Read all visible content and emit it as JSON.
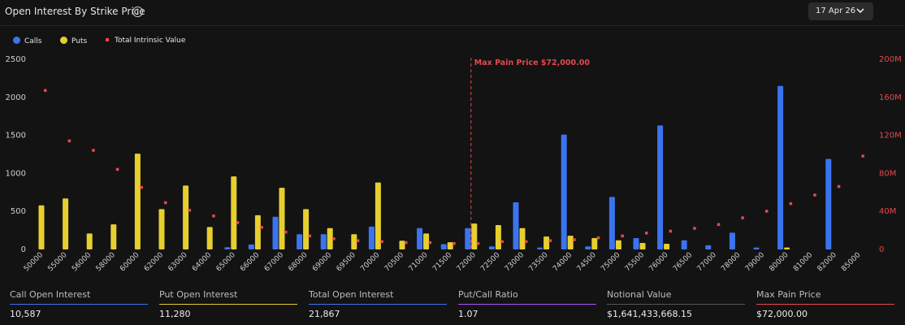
{
  "header": {
    "title": "Open Interest By Strike Price",
    "info_icon": "info-icon",
    "date": "17 Apr 26",
    "date_chevron": "chevron-down-icon"
  },
  "legend": {
    "calls": "Calls",
    "puts": "Puts",
    "intrinsic": "Total Intrinsic Value"
  },
  "colors": {
    "calls": "#3b74f0",
    "puts": "#e6cf2e",
    "intrinsic": "#e5484d",
    "max_pain": "#e5484d",
    "ratio_line": "#a855f7",
    "notional_line": "#555555"
  },
  "chart_data": {
    "type": "bar",
    "title": "Open Interest By Strike Price",
    "categories": [
      "50000",
      "55000",
      "56000",
      "58000",
      "60000",
      "62000",
      "63000",
      "64000",
      "65000",
      "66000",
      "67000",
      "68000",
      "69000",
      "69500",
      "70000",
      "70500",
      "71000",
      "71500",
      "72000",
      "72500",
      "73000",
      "73500",
      "74000",
      "74500",
      "75000",
      "75500",
      "76000",
      "76500",
      "77000",
      "78000",
      "79000",
      "80000",
      "81000",
      "82000",
      "85000"
    ],
    "series": [
      {
        "name": "Calls",
        "axis": "left",
        "values": [
          0,
          0,
          0,
          0,
          0,
          0,
          0,
          0,
          30,
          65,
          430,
          200,
          200,
          0,
          300,
          0,
          280,
          70,
          280,
          40,
          620,
          25,
          1510,
          40,
          690,
          150,
          1630,
          120,
          55,
          220,
          25,
          2150,
          0,
          1190,
          0
        ]
      },
      {
        "name": "Puts",
        "axis": "left",
        "values": [
          580,
          670,
          210,
          330,
          1260,
          530,
          840,
          295,
          960,
          450,
          810,
          530,
          280,
          200,
          880,
          115,
          210,
          95,
          340,
          320,
          280,
          170,
          180,
          150,
          120,
          85,
          75,
          0,
          0,
          0,
          0,
          25,
          0,
          0,
          0
        ]
      },
      {
        "name": "Total Intrinsic Value",
        "axis": "right",
        "type": "scatter",
        "values": [
          167000000,
          114000000,
          104000000,
          84000000,
          65000000,
          49000000,
          41000000,
          35000000,
          28000000,
          23000000,
          18000000,
          14000000,
          11000000,
          9000000,
          8000000,
          7000000,
          7000000,
          6000000,
          6000000,
          8000000,
          8000000,
          9000000,
          10000000,
          12000000,
          14000000,
          17000000,
          19000000,
          22000000,
          26000000,
          33000000,
          40000000,
          48000000,
          57000000,
          66000000,
          98000000
        ]
      }
    ],
    "y_left": {
      "min": 0,
      "max": 2500,
      "ticks": [
        "0",
        "500",
        "1000",
        "1500",
        "2000",
        "2500"
      ]
    },
    "y_right": {
      "min": 0,
      "max": 200000000,
      "ticks": [
        "0",
        "40M",
        "80M",
        "120M",
        "160M",
        "200M"
      ]
    },
    "max_pain": {
      "strike": "72000",
      "label": "Max Pain Price $72,000.00"
    },
    "grid": false
  },
  "stats": [
    {
      "label": "Call Open Interest",
      "value": "10,587"
    },
    {
      "label": "Put Open Interest",
      "value": "11,280"
    },
    {
      "label": "Total Open Interest",
      "value": "21,867"
    },
    {
      "label": "Put/Call Ratio",
      "value": "1.07"
    },
    {
      "label": "Notional Value",
      "value": "$1,641,433,668.15"
    },
    {
      "label": "Max Pain Price",
      "value": "$72,000.00"
    }
  ]
}
